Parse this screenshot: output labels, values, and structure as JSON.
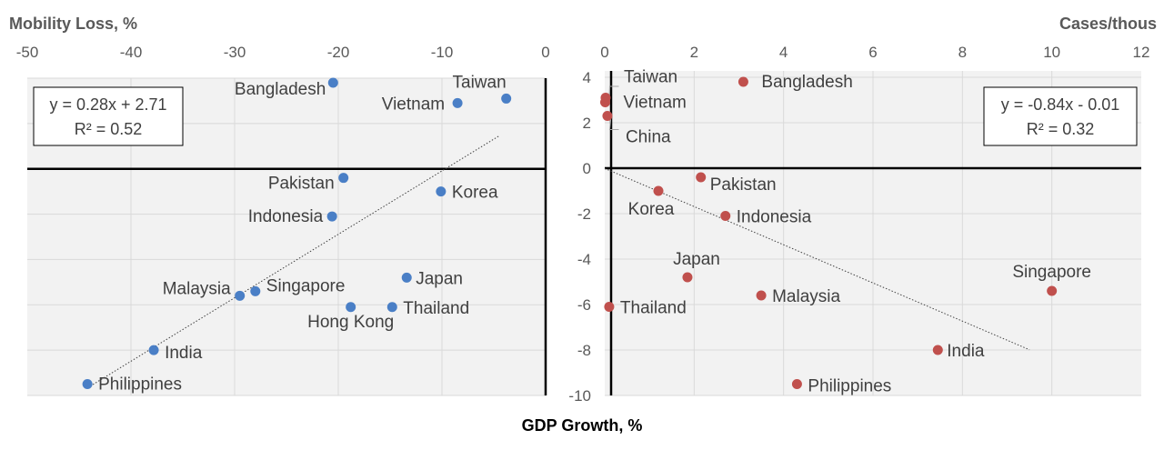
{
  "chart_data": [
    {
      "type": "scatter",
      "title": "",
      "xlabel": "Mobility Loss, %",
      "ylabel": "GDP Growth, %",
      "xlim": [
        -50,
        0
      ],
      "ylim": [
        -10,
        4
      ],
      "x_ticks": [
        "-50",
        "-40",
        "-30",
        "-20",
        "-10",
        "0"
      ],
      "color": "#4a7fc6",
      "points": [
        {
          "label": "Bangladesh",
          "x": -20.5,
          "y": 3.8
        },
        {
          "label": "Taiwan",
          "x": -3.8,
          "y": 3.1
        },
        {
          "label": "Vietnam",
          "x": -8.5,
          "y": 2.9
        },
        {
          "label": "Pakistan",
          "x": -19.5,
          "y": -0.4
        },
        {
          "label": "Korea",
          "x": -10.1,
          "y": -1.0
        },
        {
          "label": "Indonesia",
          "x": -20.6,
          "y": -2.1
        },
        {
          "label": "Japan",
          "x": -13.4,
          "y": -4.8
        },
        {
          "label": "Singapore",
          "x": -28.0,
          "y": -5.4
        },
        {
          "label": "Malaysia",
          "x": -29.5,
          "y": -5.6
        },
        {
          "label": "Hong Kong",
          "x": -18.8,
          "y": -6.1
        },
        {
          "label": "Thailand",
          "x": -14.8,
          "y": -6.1
        },
        {
          "label": "India",
          "x": -37.8,
          "y": -8.0
        },
        {
          "label": "Philippines",
          "x": -44.2,
          "y": -9.5
        }
      ],
      "trendline": {
        "slope": 0.28,
        "intercept": 2.71,
        "x_range": [
          -44.2,
          -4.5
        ]
      },
      "equation": "y = 0.28x + 2.71",
      "r_squared": "R² = 0.52",
      "grid": true,
      "legend": "none"
    },
    {
      "type": "scatter",
      "title": "",
      "xlabel": "Cases/thous",
      "ylabel": "GDP Growth, %",
      "xlim": [
        0,
        12
      ],
      "ylim": [
        -10,
        4
      ],
      "x_ticks": [
        "0",
        "2",
        "4",
        "6",
        "8",
        "10",
        "12"
      ],
      "y_ticks": [
        "4",
        "2",
        "0",
        "-2",
        "-4",
        "-6",
        "-8",
        "-10"
      ],
      "color": "#c0504d",
      "points": [
        {
          "label": "Taiwan",
          "x": 0.02,
          "y": 3.1
        },
        {
          "label": "Vietnam",
          "x": 0.01,
          "y": 2.9
        },
        {
          "label": "China",
          "x": 0.06,
          "y": 2.3
        },
        {
          "label": "Bangladesh",
          "x": 3.1,
          "y": 3.8
        },
        {
          "label": "Pakistan",
          "x": 2.15,
          "y": -0.4
        },
        {
          "label": "Korea",
          "x": 1.2,
          "y": -1.0
        },
        {
          "label": "Indonesia",
          "x": 2.7,
          "y": -2.1
        },
        {
          "label": "Japan",
          "x": 1.85,
          "y": -4.8
        },
        {
          "label": "Malaysia",
          "x": 3.5,
          "y": -5.6
        },
        {
          "label": "Singapore",
          "x": 10.0,
          "y": -5.4
        },
        {
          "label": "Thailand",
          "x": 0.1,
          "y": -6.1
        },
        {
          "label": "India",
          "x": 7.45,
          "y": -8.0
        },
        {
          "label": "Philippines",
          "x": 4.3,
          "y": -9.5
        }
      ],
      "trendline": {
        "slope": -0.84,
        "intercept": -0.01,
        "x_range": [
          0,
          9.5
        ]
      },
      "equation": "y = -0.84x - 0.01",
      "r_squared": "R² = 0.32",
      "grid": true,
      "legend": "none"
    }
  ],
  "shared_xlabel": "GDP Growth, %"
}
